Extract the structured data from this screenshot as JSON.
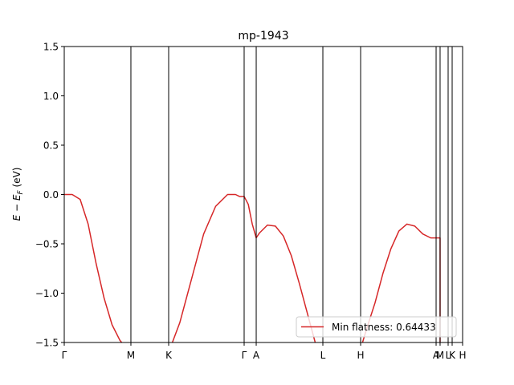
{
  "chart_data": {
    "type": "line",
    "title": "mp-1943",
    "ylabel": "E − E_F (eV)",
    "ylabel_parts": {
      "E": "E",
      "minus": " − ",
      "E2": "E",
      "sub": "F",
      "unit": " (eV)"
    },
    "xlabel": "",
    "ylim": [
      -1.5,
      1.5
    ],
    "xlim": [
      0,
      1
    ],
    "yticks": [
      {
        "value": -1.5,
        "label": "−1.5"
      },
      {
        "value": -1.0,
        "label": "−1.0"
      },
      {
        "value": -0.5,
        "label": "−0.5"
      },
      {
        "value": 0.0,
        "label": "0.0"
      },
      {
        "value": 0.5,
        "label": "0.5"
      },
      {
        "value": 1.0,
        "label": "1.0"
      },
      {
        "value": 1.5,
        "label": "1.5"
      }
    ],
    "xticks": [
      {
        "value": 0.0,
        "label": "Γ"
      },
      {
        "value": 0.1673,
        "label": "M"
      },
      {
        "value": 0.2621,
        "label": "K"
      },
      {
        "value": 0.4516,
        "label": "Γ"
      },
      {
        "value": 0.4819,
        "label": "A"
      },
      {
        "value": 0.6492,
        "label": "L"
      },
      {
        "value": 0.744,
        "label": "H"
      },
      {
        "value": 0.9335,
        "label": "A"
      },
      {
        "value": 0.9435,
        "label": "M"
      },
      {
        "value": 0.9637,
        "label": "L"
      },
      {
        "value": 0.9738,
        "label": "K"
      },
      {
        "value": 1.0,
        "label": "H"
      }
    ],
    "grid": false,
    "legend_position": "lower-right",
    "series": [
      {
        "name": "Min flatness: 0.64433",
        "color": "#d62728",
        "x": [
          0.0,
          0.02,
          0.04,
          0.06,
          0.08,
          0.1,
          0.12,
          0.14,
          0.155,
          0.165,
          0.172,
          0.2,
          0.23,
          0.2621,
          0.29,
          0.32,
          0.35,
          0.38,
          0.41,
          0.43,
          0.44,
          0.4516,
          0.462,
          0.472,
          0.4819,
          0.49,
          0.51,
          0.53,
          0.55,
          0.57,
          0.59,
          0.61,
          0.63,
          0.645,
          0.655,
          0.66,
          0.7,
          0.73,
          0.745,
          0.76,
          0.78,
          0.8,
          0.82,
          0.84,
          0.86,
          0.88,
          0.9,
          0.92,
          0.935,
          0.9435,
          0.9435
        ],
        "y": [
          0.0,
          0.0,
          -0.05,
          -0.3,
          -0.7,
          -1.05,
          -1.32,
          -1.48,
          -1.55,
          -1.6,
          -1.62,
          -1.6,
          -1.6,
          -1.6,
          -1.3,
          -0.85,
          -0.4,
          -0.12,
          0.0,
          0.0,
          -0.02,
          -0.02,
          -0.1,
          -0.3,
          -0.44,
          -0.39,
          -0.31,
          -0.32,
          -0.42,
          -0.62,
          -0.9,
          -1.2,
          -1.5,
          -1.65,
          -1.72,
          -1.7,
          -1.7,
          -1.7,
          -1.55,
          -1.35,
          -1.1,
          -0.8,
          -0.55,
          -0.37,
          -0.3,
          -0.32,
          -0.4,
          -0.44,
          -0.44,
          -0.44,
          -1.55
        ]
      }
    ]
  }
}
